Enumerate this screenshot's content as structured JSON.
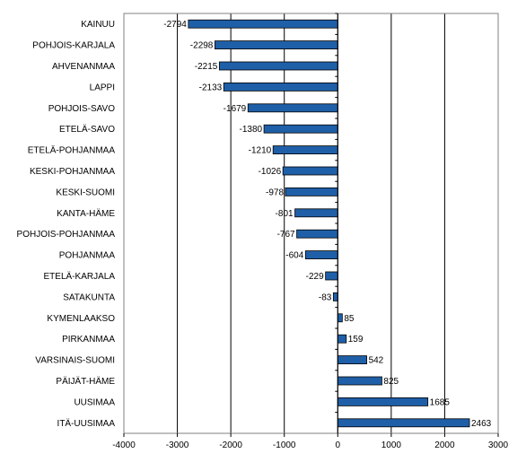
{
  "chart_data": {
    "type": "bar",
    "orientation": "horizontal",
    "categories": [
      "KAINUU",
      "POHJOIS-KARJALA",
      "AHVENANMAA",
      "LAPPI",
      "POHJOIS-SAVO",
      "ETELÄ-SAVO",
      "ETELÄ-POHJANMAA",
      "KESKI-POHJANMAA",
      "KESKI-SUOMI",
      "KANTA-HÄME",
      "POHJOIS-POHJANMAA",
      "POHJANMAA",
      "ETELÄ-KARJALA",
      "SATAKUNTA",
      "KYMENLAAKSO",
      "PIRKANMAA",
      "VARSINAIS-SUOMI",
      "PÄIJÄT-HÄME",
      "UUSIMAA",
      "ITÄ-UUSIMAA"
    ],
    "values": [
      -2794,
      -2298,
      -2215,
      -2133,
      -1679,
      -1380,
      -1210,
      -1026,
      -978,
      -801,
      -767,
      -604,
      -229,
      -83,
      85,
      159,
      542,
      825,
      1685,
      2463
    ],
    "xlim": [
      -4000,
      3000
    ],
    "xticks": [
      -4000,
      -3000,
      -2000,
      -1000,
      0,
      1000,
      2000,
      3000
    ],
    "grid": true,
    "legend": "none",
    "title": "",
    "xlabel": "",
    "ylabel": "",
    "bar_color": "#1f5fa8"
  }
}
